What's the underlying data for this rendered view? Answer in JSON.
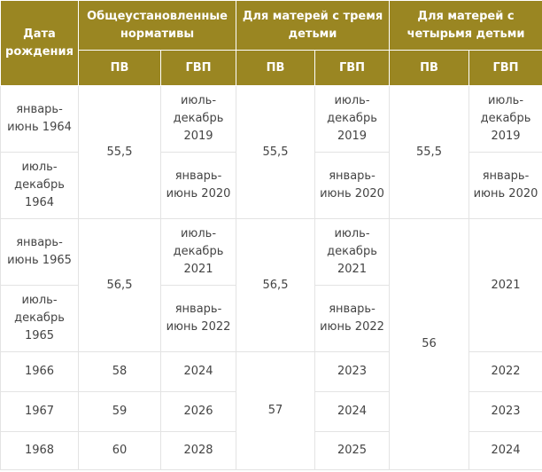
{
  "headers": {
    "birth_date": "Дата рождения",
    "general": "Общеустановленные нормативы",
    "three_children": "Для матерей с тремя детьми",
    "four_children": "Для матерей с четырьмя детьми",
    "pv": "ПВ",
    "gvp": "ГВП"
  },
  "rows": [
    {
      "date": "январь-июнь 1964",
      "gen_pv": "55,5",
      "gen_gvp": "июль-декабрь 2019",
      "three_pv": "55,5",
      "three_gvp": "июль-декабрь 2019",
      "four_pv": "55,5",
      "four_gvp": "июль-декабрь 2019"
    },
    {
      "date": "июль-декабрь 1964",
      "gen_gvp": "январь-июнь 2020",
      "three_gvp": "январь-июнь 2020",
      "four_gvp": "январь-июнь 2020"
    },
    {
      "date": "январь-июнь 1965",
      "gen_pv": "56,5",
      "gen_gvp": "июль-декабрь 2021",
      "three_pv": "56,5",
      "three_gvp": "июль-декабрь 2021",
      "four_pv": "56",
      "four_gvp": "2021"
    },
    {
      "date": "июль-декабрь 1965",
      "gen_gvp": "январь-июнь 2022",
      "three_gvp": "январь-июнь 2022"
    },
    {
      "date": "1966",
      "gen_pv": "58",
      "gen_gvp": "2024",
      "three_pv": "57",
      "three_gvp": "2023",
      "four_gvp": "2022"
    },
    {
      "date": "1967",
      "gen_pv": "59",
      "gen_gvp": "2026",
      "three_gvp": "2024",
      "four_gvp": "2023"
    },
    {
      "date": "1968",
      "gen_pv": "60",
      "gen_gvp": "2028",
      "three_gvp": "2025",
      "four_gvp": "2024"
    }
  ]
}
